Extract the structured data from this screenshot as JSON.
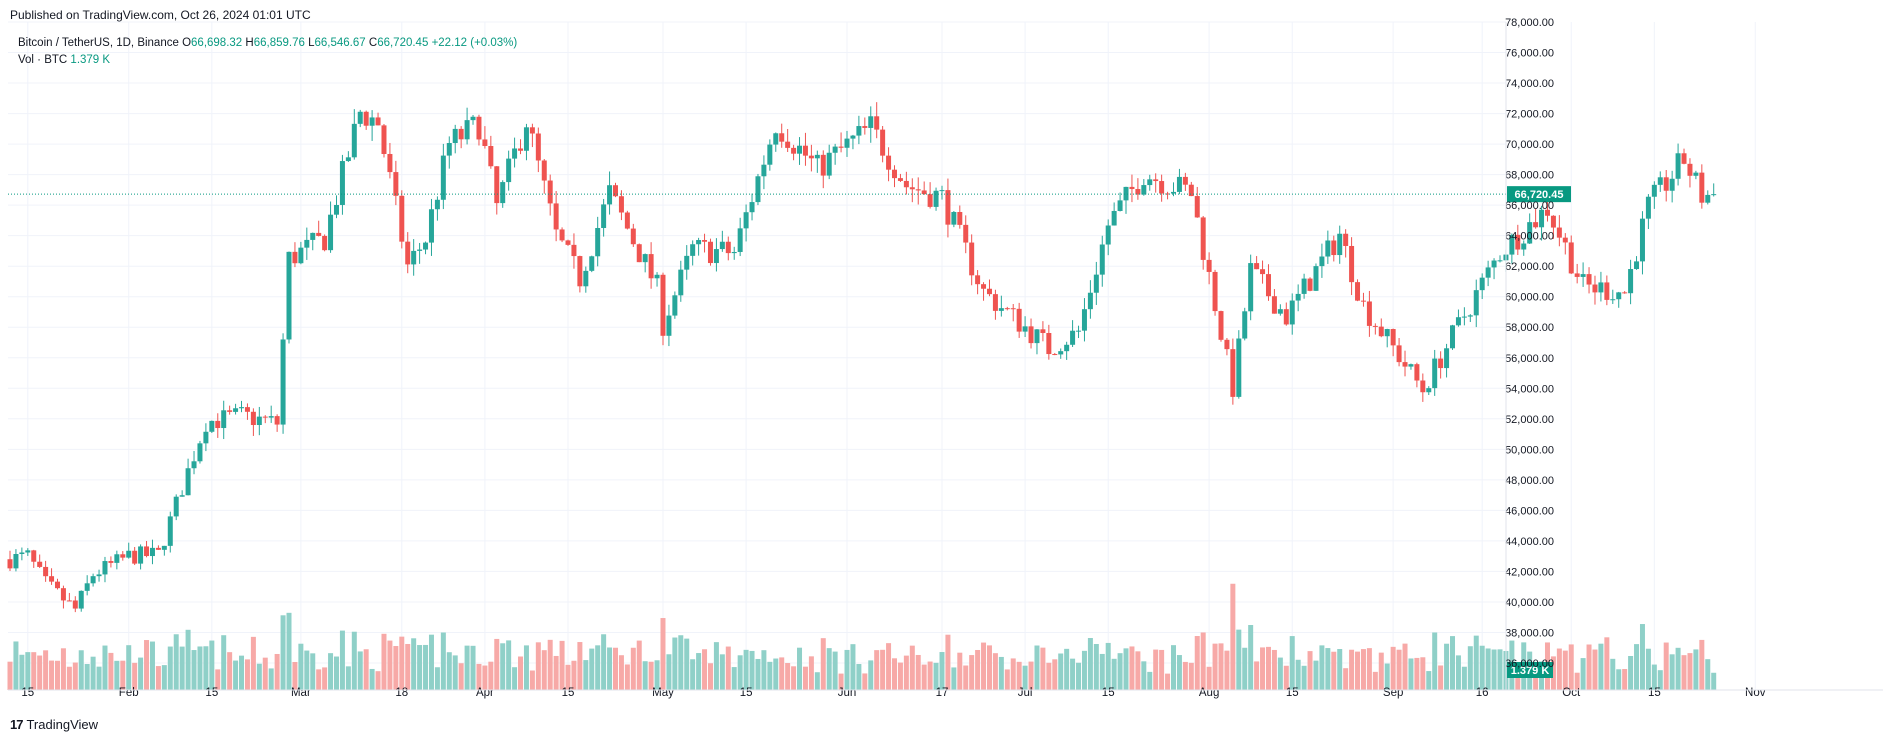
{
  "header": {
    "published": "Published on TradingView.com, Oct 26, 2024 01:01 UTC"
  },
  "legend": {
    "symbol": "Bitcoin / TetherUS, 1D, Binance",
    "o_label": "O",
    "o_value": "66,698.32",
    "h_label": "H",
    "h_value": "66,859.76",
    "l_label": "L",
    "l_value": "66,546.67",
    "c_label": "C",
    "c_value": "66,720.45",
    "change": "+22.12 (+0.03%)",
    "vol_label": "Vol · BTC",
    "vol_value": "1.379 K"
  },
  "footer": {
    "brand": "TradingView",
    "logo": "17"
  },
  "colors": {
    "up": "#26a69a",
    "down": "#ef5350",
    "vol_up": "#8fd0c8",
    "vol_down": "#f7a9a7",
    "grid": "#f0f3fa",
    "last": "#089981"
  },
  "chart_data": {
    "type": "candlestick",
    "symbol": "Bitcoin / TetherUS, 1D, Binance",
    "y_axis": {
      "min": 36000,
      "max": 78000,
      "ticks": [
        36000,
        38000,
        40000,
        42000,
        44000,
        46000,
        48000,
        50000,
        52000,
        54000,
        56000,
        58000,
        60000,
        62000,
        64000,
        66000,
        68000,
        70000,
        72000,
        74000,
        76000,
        78000
      ],
      "tick_labels": [
        "36,000.00",
        "38,000.00",
        "40,000.00",
        "42,000.00",
        "44,000.00",
        "46,000.00",
        "48,000.00",
        "50,000.00",
        "52,000.00",
        "54,000.00",
        "56,000.00",
        "58,000.00",
        "60,000.00",
        "62,000.00",
        "64,000.00",
        "66,000.00",
        "68,000.00",
        "70,000.00",
        "72,000.00",
        "74,000.00",
        "76,000.00",
        "78,000.00"
      ]
    },
    "x_axis": {
      "start": "2024-01-12",
      "end": "2024-11-05",
      "ticks": [
        {
          "label": "15",
          "date": "2024-01-15"
        },
        {
          "label": "Feb",
          "date": "2024-02-01"
        },
        {
          "label": "15",
          "date": "2024-02-15"
        },
        {
          "label": "Mar",
          "date": "2024-03-01"
        },
        {
          "label": "18",
          "date": "2024-03-18"
        },
        {
          "label": "Apr",
          "date": "2024-04-01"
        },
        {
          "label": "15",
          "date": "2024-04-15"
        },
        {
          "label": "May",
          "date": "2024-05-01"
        },
        {
          "label": "15",
          "date": "2024-05-15"
        },
        {
          "label": "Jun",
          "date": "2024-06-01"
        },
        {
          "label": "17",
          "date": "2024-06-17"
        },
        {
          "label": "Jul",
          "date": "2024-07-01"
        },
        {
          "label": "15",
          "date": "2024-07-15"
        },
        {
          "label": "Aug",
          "date": "2024-08-01"
        },
        {
          "label": "15",
          "date": "2024-08-15"
        },
        {
          "label": "Sep",
          "date": "2024-09-01"
        },
        {
          "label": "16",
          "date": "2024-09-16"
        },
        {
          "label": "Oct",
          "date": "2024-10-01"
        },
        {
          "label": "15",
          "date": "2024-10-15"
        },
        {
          "label": "Nov",
          "date": "2024-11-01"
        }
      ]
    },
    "last_price": 66720.45,
    "last_price_label": "66,720.45",
    "volume_label": "1.379 K",
    "close_anchors": [
      {
        "date": "2024-01-12",
        "close": 42800
      },
      {
        "date": "2024-01-15",
        "close": 43000
      },
      {
        "date": "2024-01-18",
        "close": 41200
      },
      {
        "date": "2024-01-23",
        "close": 39500
      },
      {
        "date": "2024-01-26",
        "close": 41800
      },
      {
        "date": "2024-02-01",
        "close": 43000
      },
      {
        "date": "2024-02-06",
        "close": 43100
      },
      {
        "date": "2024-02-10",
        "close": 47500
      },
      {
        "date": "2024-02-14",
        "close": 51800
      },
      {
        "date": "2024-02-20",
        "close": 52200
      },
      {
        "date": "2024-02-26",
        "close": 51700
      },
      {
        "date": "2024-02-28",
        "close": 62500
      },
      {
        "date": "2024-03-05",
        "close": 63800
      },
      {
        "date": "2024-03-11",
        "close": 72100
      },
      {
        "date": "2024-03-14",
        "close": 71400
      },
      {
        "date": "2024-03-19",
        "close": 62000
      },
      {
        "date": "2024-03-22",
        "close": 63800
      },
      {
        "date": "2024-03-26",
        "close": 70000
      },
      {
        "date": "2024-03-31",
        "close": 71300
      },
      {
        "date": "2024-04-03",
        "close": 65900
      },
      {
        "date": "2024-04-08",
        "close": 71600
      },
      {
        "date": "2024-04-13",
        "close": 64000
      },
      {
        "date": "2024-04-17",
        "close": 61200
      },
      {
        "date": "2024-04-22",
        "close": 66800
      },
      {
        "date": "2024-04-30",
        "close": 60600
      },
      {
        "date": "2024-05-01",
        "close": 58200
      },
      {
        "date": "2024-05-06",
        "close": 63100
      },
      {
        "date": "2024-05-13",
        "close": 62900
      },
      {
        "date": "2024-05-20",
        "close": 71400
      },
      {
        "date": "2024-05-27",
        "close": 68400
      },
      {
        "date": "2024-06-05",
        "close": 71100
      },
      {
        "date": "2024-06-11",
        "close": 67300
      },
      {
        "date": "2024-06-17",
        "close": 66500
      },
      {
        "date": "2024-06-24",
        "close": 60300
      },
      {
        "date": "2024-07-04",
        "close": 57000
      },
      {
        "date": "2024-07-05",
        "close": 56600
      },
      {
        "date": "2024-07-10",
        "close": 57700
      },
      {
        "date": "2024-07-15",
        "close": 64700
      },
      {
        "date": "2024-07-21",
        "close": 68100
      },
      {
        "date": "2024-07-29",
        "close": 66800
      },
      {
        "date": "2024-08-05",
        "close": 54000
      },
      {
        "date": "2024-08-08",
        "close": 61700
      },
      {
        "date": "2024-08-14",
        "close": 58700
      },
      {
        "date": "2024-08-23",
        "close": 64100
      },
      {
        "date": "2024-08-27",
        "close": 59400
      },
      {
        "date": "2024-09-06",
        "close": 53900
      },
      {
        "date": "2024-09-12",
        "close": 58100
      },
      {
        "date": "2024-09-19",
        "close": 62900
      },
      {
        "date": "2024-09-27",
        "close": 65800
      },
      {
        "date": "2024-10-03",
        "close": 60700
      },
      {
        "date": "2024-10-10",
        "close": 60300
      },
      {
        "date": "2024-10-14",
        "close": 65900
      },
      {
        "date": "2024-10-20",
        "close": 69000
      },
      {
        "date": "2024-10-23",
        "close": 66600
      },
      {
        "date": "2024-10-25",
        "close": 66720
      }
    ],
    "volume_spike": {
      "date": "2024-08-05",
      "volume_k": 8.5
    }
  }
}
